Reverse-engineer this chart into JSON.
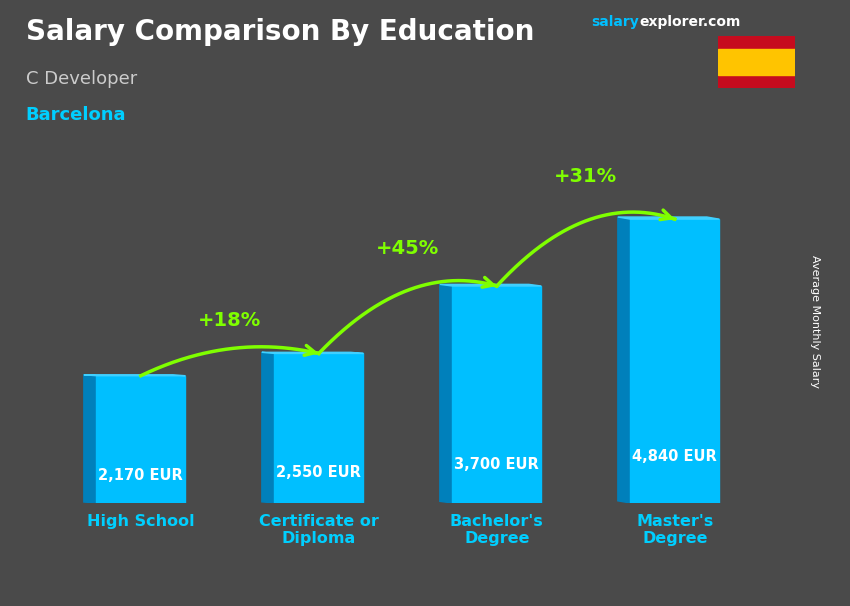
{
  "title": "Salary Comparison By Education",
  "subtitle_job": "C Developer",
  "subtitle_city": "Barcelona",
  "ylabel": "Average Monthly Salary",
  "website": "salary",
  "website2": "explorer.com",
  "categories": [
    "High School",
    "Certificate or\nDiploma",
    "Bachelor's\nDegree",
    "Master's\nDegree"
  ],
  "values": [
    2170,
    2550,
    3700,
    4840
  ],
  "value_labels": [
    "2,170 EUR",
    "2,550 EUR",
    "3,700 EUR",
    "4,840 EUR"
  ],
  "pct_labels": [
    "+18%",
    "+45%",
    "+31%"
  ],
  "bar_color": "#00BFFF",
  "bar_edge_color": "#009FDF",
  "bar_dark_color": "#0080BB",
  "bar_top_color": "#40D0FF",
  "pct_color": "#7FFF00",
  "title_color": "#FFFFFF",
  "subtitle_job_color": "#CCCCCC",
  "subtitle_city_color": "#00CFFF",
  "value_label_color": "#FFFFFF",
  "ylabel_color": "#FFFFFF",
  "website_color1": "#00BFFF",
  "website_color2": "#FFFFFF",
  "background_color": "#4a4a4a",
  "ylim": [
    0,
    6200
  ],
  "bar_width": 0.5
}
